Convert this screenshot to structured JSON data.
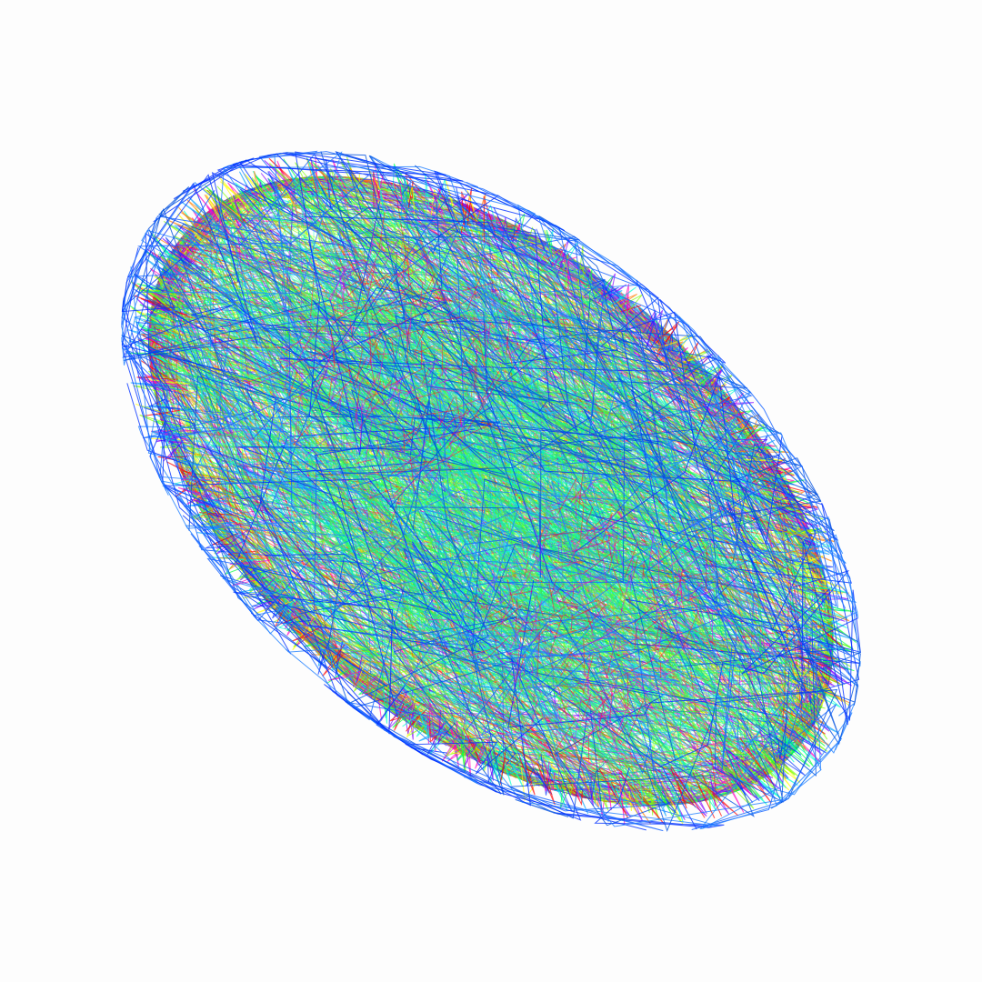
{
  "artwork": {
    "kind": "line-art ellipse of overlapping colored polylines",
    "background_color": "#fdfdfd",
    "palette": [
      "#ff0000",
      "#ff8000",
      "#ffff00",
      "#80ff00",
      "#00ff40",
      "#00ffd0",
      "#00a0ff",
      "#0030ff",
      "#8000ff",
      "#ff00c0"
    ],
    "dominant_colors": [
      "#00e0a0",
      "#40ff40",
      "#1060ff"
    ]
  }
}
